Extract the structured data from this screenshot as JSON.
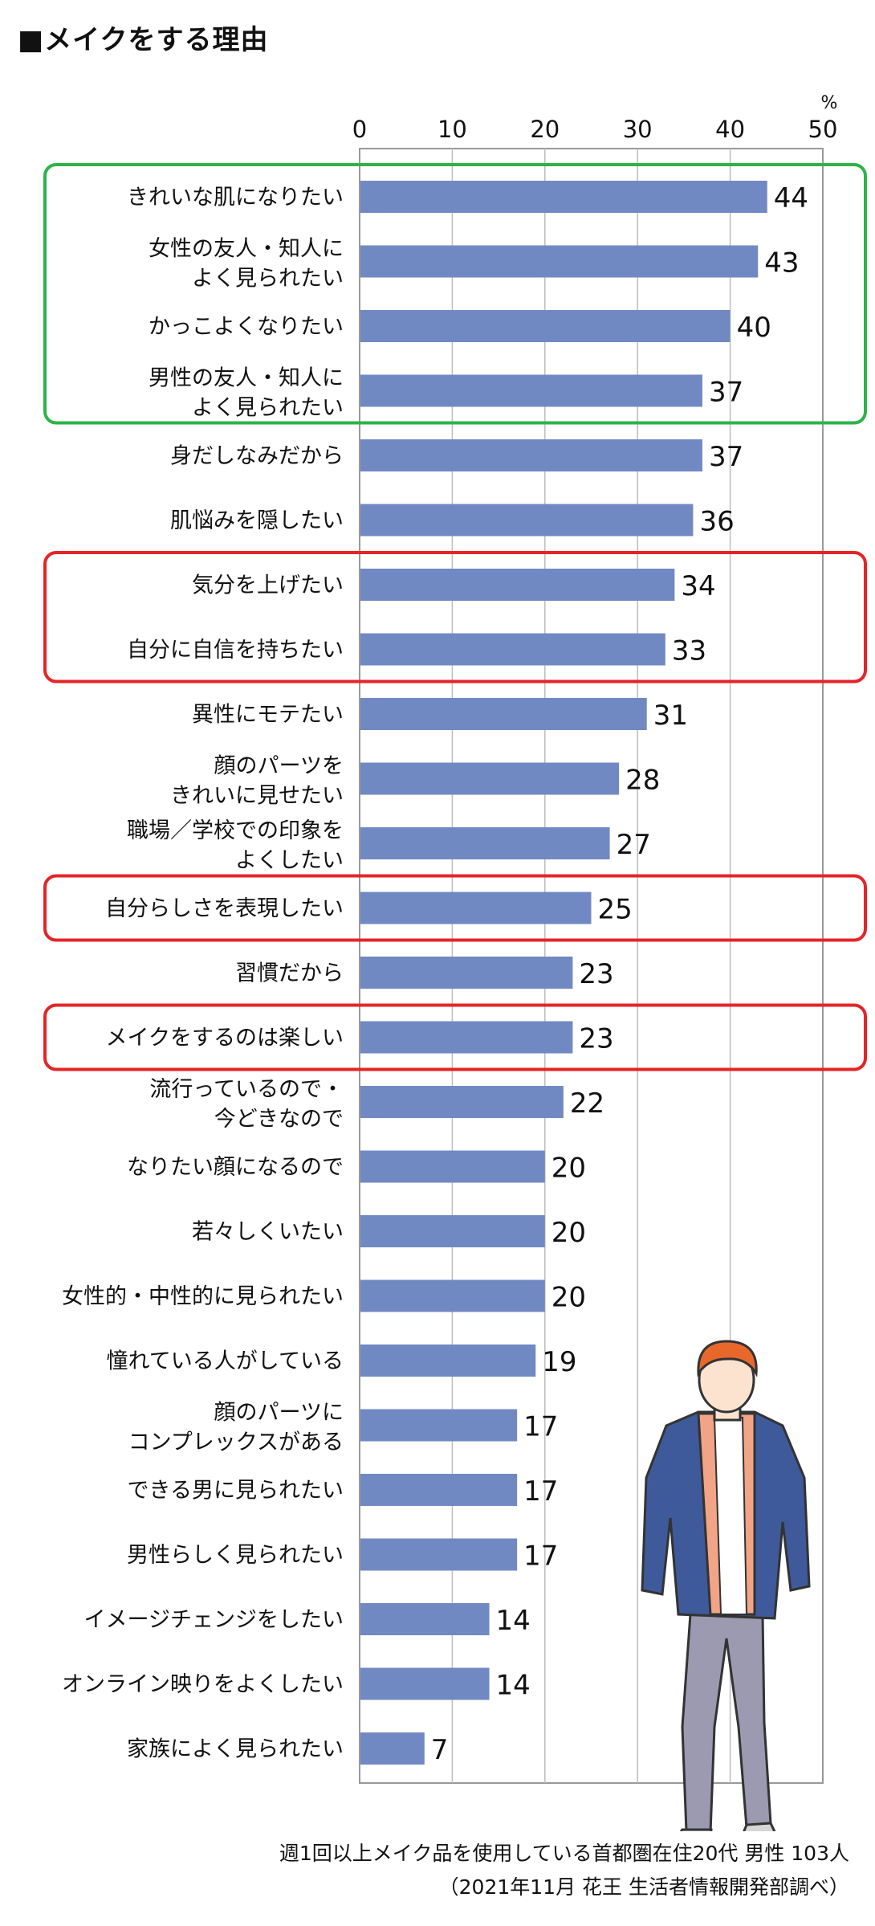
{
  "title": "■メイクをする理由",
  "note": "週1回以上メイク品を使用している首都圏在住20代 男性 103人",
  "source": "（2021年11月 花王 生活者情報開発部調べ）",
  "chart_data": {
    "type": "bar",
    "orientation": "horizontal",
    "unit": "%",
    "xlim": [
      0,
      50
    ],
    "ticks": [
      0,
      10,
      20,
      30,
      40,
      50
    ],
    "grid": true,
    "bar_color": "#7189c3",
    "highlight_colors": {
      "green": "#2db34a",
      "red": "#e52427"
    },
    "categories": [
      [
        "きれいな肌になりたい"
      ],
      [
        "女性の友人・知人に",
        "よく見られたい"
      ],
      [
        "かっこよくなりたい"
      ],
      [
        "男性の友人・知人に",
        "よく見られたい"
      ],
      [
        "身だしなみだから"
      ],
      [
        "肌悩みを隠したい"
      ],
      [
        "気分を上げたい"
      ],
      [
        "自分に自信を持ちたい"
      ],
      [
        "異性にモテたい"
      ],
      [
        "顔のパーツを",
        "きれいに見せたい"
      ],
      [
        "職場／学校での印象を",
        "よくしたい"
      ],
      [
        "自分らしさを表現したい"
      ],
      [
        "習慣だから"
      ],
      [
        "メイクをするのは楽しい"
      ],
      [
        "流行っているので・",
        "今どきなので"
      ],
      [
        "なりたい顔になるので"
      ],
      [
        "若々しくいたい"
      ],
      [
        "女性的・中性的に見られたい"
      ],
      [
        "憧れている人がしている"
      ],
      [
        "顔のパーツに",
        "コンプレックスがある"
      ],
      [
        "できる男に見られたい"
      ],
      [
        "男性らしく見られたい"
      ],
      [
        "イメージチェンジをしたい"
      ],
      [
        "オンライン映りをよくしたい"
      ],
      [
        "家族によく見られたい"
      ]
    ],
    "values": [
      44,
      43,
      40,
      37,
      37,
      36,
      34,
      33,
      31,
      28,
      27,
      25,
      23,
      23,
      22,
      20,
      20,
      20,
      19,
      17,
      17,
      17,
      14,
      14,
      7
    ],
    "highlight_groups": [
      {
        "color": "green",
        "first": 0,
        "last": 3
      },
      {
        "color": "red",
        "first": 6,
        "last": 7
      },
      {
        "color": "red",
        "first": 11,
        "last": 11
      },
      {
        "color": "red",
        "first": 13,
        "last": 13
      }
    ]
  }
}
